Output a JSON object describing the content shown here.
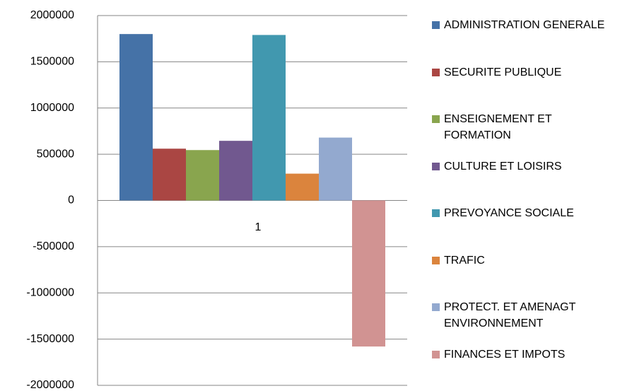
{
  "chart_data": {
    "type": "bar",
    "categories": [
      "1"
    ],
    "series": [
      {
        "name": "ADMINISTRATION GENERALE",
        "color": "#4572A7",
        "values": [
          1800000
        ]
      },
      {
        "name": "SECURITE PUBLIQUE",
        "color": "#AA4643",
        "values": [
          560000
        ]
      },
      {
        "name": "ENSEIGNEMENT ET FORMATION",
        "color": "#89A54E",
        "values": [
          545000
        ]
      },
      {
        "name": "CULTURE ET LOISIRS",
        "color": "#71588F",
        "values": [
          645000
        ]
      },
      {
        "name": "PREVOYANCE SOCIALE",
        "color": "#4198AF",
        "values": [
          1790000
        ]
      },
      {
        "name": "TRAFIC",
        "color": "#DB843D",
        "values": [
          290000
        ]
      },
      {
        "name": "PROTECT. ET AMENAGT ENVIRONNEMENT",
        "color": "#93A9CF",
        "values": [
          680000
        ]
      },
      {
        "name": "FINANCES ET IMPOTS",
        "color": "#D19392",
        "values": [
          -1580000
        ]
      }
    ],
    "ylim": [
      -2000000,
      2000000
    ],
    "yticks": [
      -2000000,
      -1500000,
      -1000000,
      -500000,
      0,
      500000,
      1000000,
      1500000,
      2000000
    ],
    "grid": true,
    "legend": "right"
  }
}
